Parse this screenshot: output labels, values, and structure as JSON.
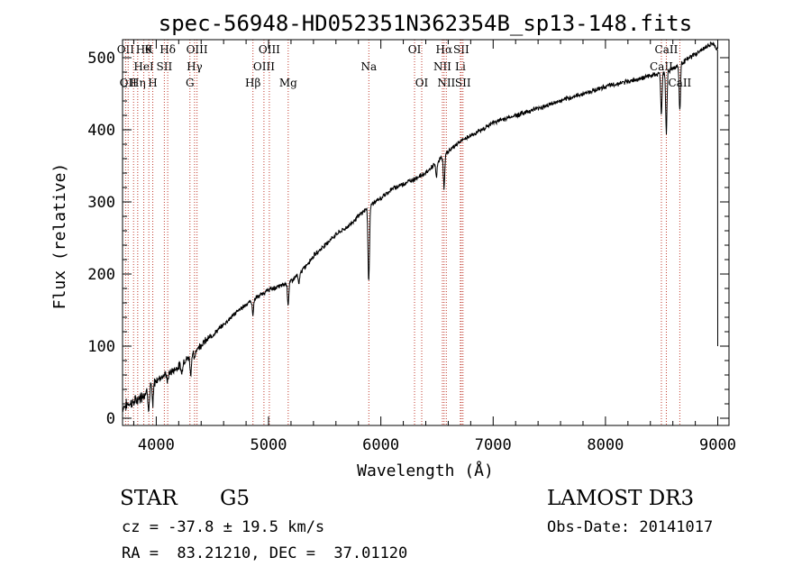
{
  "chart_data": {
    "type": "line",
    "title": "spec-56948-HD052351N362354B_sp13-148.fits",
    "xlabel": "Wavelength (Å)",
    "ylabel": "Flux (relative)",
    "xlim": [
      3700,
      9100
    ],
    "ylim": [
      -10,
      525
    ],
    "xticks": [
      4000,
      5000,
      6000,
      7000,
      8000,
      9000
    ],
    "yticks": [
      0,
      100,
      200,
      300,
      400,
      500
    ],
    "series": [
      {
        "name": "flux",
        "anchors": [
          [
            3700,
            15
          ],
          [
            3750,
            20
          ],
          [
            3800,
            22
          ],
          [
            3850,
            28
          ],
          [
            3900,
            35
          ],
          [
            3950,
            45
          ],
          [
            4000,
            52
          ],
          [
            4050,
            58
          ],
          [
            4100,
            62
          ],
          [
            4150,
            66
          ],
          [
            4200,
            72
          ],
          [
            4250,
            80
          ],
          [
            4300,
            85
          ],
          [
            4350,
            95
          ],
          [
            4400,
            102
          ],
          [
            4500,
            115
          ],
          [
            4600,
            130
          ],
          [
            4700,
            145
          ],
          [
            4800,
            158
          ],
          [
            4900,
            168
          ],
          [
            5000,
            178
          ],
          [
            5100,
            183
          ],
          [
            5200,
            190
          ],
          [
            5300,
            205
          ],
          [
            5400,
            225
          ],
          [
            5500,
            240
          ],
          [
            5600,
            255
          ],
          [
            5700,
            265
          ],
          [
            5800,
            280
          ],
          [
            5900,
            295
          ],
          [
            6000,
            305
          ],
          [
            6100,
            318
          ],
          [
            6200,
            325
          ],
          [
            6300,
            332
          ],
          [
            6400,
            340
          ],
          [
            6500,
            355
          ],
          [
            6600,
            370
          ],
          [
            6700,
            383
          ],
          [
            6800,
            392
          ],
          [
            6900,
            400
          ],
          [
            7000,
            410
          ],
          [
            7200,
            420
          ],
          [
            7400,
            430
          ],
          [
            7600,
            440
          ],
          [
            7800,
            450
          ],
          [
            8000,
            460
          ],
          [
            8200,
            467
          ],
          [
            8400,
            475
          ],
          [
            8500,
            478
          ],
          [
            8600,
            485
          ],
          [
            8700,
            495
          ],
          [
            8800,
            505
          ],
          [
            8900,
            515
          ],
          [
            8950,
            520
          ],
          [
            9000,
            510
          ]
        ],
        "absorption_dips": [
          [
            3934,
            30
          ],
          [
            3969,
            30
          ],
          [
            4102,
            12
          ],
          [
            4227,
            15
          ],
          [
            4307,
            25
          ],
          [
            4341,
            12
          ],
          [
            4861,
            20
          ],
          [
            5175,
            30
          ],
          [
            5270,
            15
          ],
          [
            5890,
            70
          ],
          [
            5896,
            45
          ],
          [
            6563,
            45
          ],
          [
            6495,
            20
          ],
          [
            8498,
            55
          ],
          [
            8542,
            85
          ],
          [
            8662,
            65
          ]
        ],
        "end_drop": [
          9000,
          100
        ]
      }
    ],
    "line_markers": [
      {
        "wavelength": 3727,
        "top": "OII",
        "mid": "",
        "bot": ""
      },
      {
        "wavelength": 3750,
        "top": "",
        "mid": "",
        "bot": "OII"
      },
      {
        "wavelength": 3798,
        "top": "",
        "mid": "",
        "bot": ""
      },
      {
        "wavelength": 3835,
        "top": "",
        "mid": "",
        "bot": "Hη"
      },
      {
        "wavelength": 3889,
        "top": "Hθ",
        "mid": "HeI",
        "bot": ""
      },
      {
        "wavelength": 3934,
        "top": "K",
        "mid": "",
        "bot": ""
      },
      {
        "wavelength": 3969,
        "top": "",
        "mid": "",
        "bot": "H"
      },
      {
        "wavelength": 4072,
        "top": "",
        "mid": "SII",
        "bot": ""
      },
      {
        "wavelength": 4102,
        "top": "Hδ",
        "mid": "",
        "bot": ""
      },
      {
        "wavelength": 4300,
        "top": "",
        "mid": "",
        "bot": "G"
      },
      {
        "wavelength": 4341,
        "top": "",
        "mid": "Hγ",
        "bot": ""
      },
      {
        "wavelength": 4363,
        "top": "OIII",
        "mid": "",
        "bot": ""
      },
      {
        "wavelength": 4861,
        "top": "",
        "mid": "",
        "bot": "Hβ"
      },
      {
        "wavelength": 4959,
        "top": "",
        "mid": "OIII",
        "bot": ""
      },
      {
        "wavelength": 5007,
        "top": "OIII",
        "mid": "",
        "bot": ""
      },
      {
        "wavelength": 5175,
        "top": "",
        "mid": "",
        "bot": "Mg"
      },
      {
        "wavelength": 5893,
        "top": "",
        "mid": "Na",
        "bot": ""
      },
      {
        "wavelength": 6300,
        "top": "OI",
        "mid": "",
        "bot": ""
      },
      {
        "wavelength": 6364,
        "top": "",
        "mid": "",
        "bot": "OI"
      },
      {
        "wavelength": 6548,
        "top": "",
        "mid": "NII",
        "bot": ""
      },
      {
        "wavelength": 6563,
        "top": "Hα",
        "mid": "",
        "bot": ""
      },
      {
        "wavelength": 6583,
        "top": "",
        "mid": "",
        "bot": "NII"
      },
      {
        "wavelength": 6708,
        "top": "",
        "mid": "Li",
        "bot": ""
      },
      {
        "wavelength": 6716,
        "top": "SII",
        "mid": "",
        "bot": ""
      },
      {
        "wavelength": 6731,
        "top": "",
        "mid": "",
        "bot": "SII"
      },
      {
        "wavelength": 8498,
        "top": "",
        "mid": "CaII",
        "bot": ""
      },
      {
        "wavelength": 8542,
        "top": "CaII",
        "mid": "",
        "bot": ""
      },
      {
        "wavelength": 8662,
        "top": "",
        "mid": "",
        "bot": "CaII"
      }
    ],
    "line_color": "#c0392b",
    "grid": false
  },
  "info": {
    "object_type": "STAR",
    "subclass": "G5",
    "survey": "LAMOST DR3",
    "redshift": "cz = -37.8 ± 19.5 km/s",
    "obs_date": "Obs-Date: 20141017",
    "coords": "RA =  83.21210, DEC =  37.01120"
  }
}
